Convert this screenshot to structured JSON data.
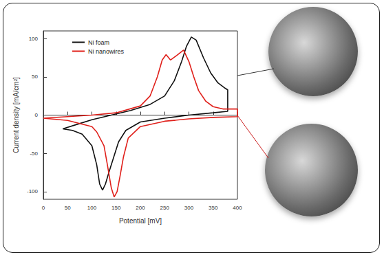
{
  "chart_data": {
    "type": "line",
    "x_label": "Potential [mV]",
    "y_label": "Current density [mA/cm²]",
    "xlim": [
      0,
      400
    ],
    "xticks": [
      0,
      50,
      100,
      150,
      200,
      250,
      300,
      350,
      400
    ],
    "ylim": [
      -110,
      110
    ],
    "yticks": [
      -100,
      -50,
      0,
      50,
      100
    ],
    "grid": false,
    "legend": "upper left",
    "series": [
      {
        "name": "Ni foam",
        "color": "#111111",
        "x": [
          40,
          70,
          100,
          140,
          180,
          220,
          250,
          270,
          285,
          295,
          305,
          315,
          330,
          345,
          360,
          375,
          380,
          380,
          350,
          300,
          250,
          200,
          170,
          155,
          145,
          135,
          128,
          122,
          116,
          110,
          100,
          80,
          60,
          40
        ],
        "values": [
          -18,
          -12,
          -6,
          0,
          6,
          14,
          25,
          45,
          70,
          90,
          102,
          98,
          75,
          55,
          42,
          35,
          33,
          5,
          3,
          0,
          -4,
          -9,
          -20,
          -35,
          -55,
          -75,
          -90,
          -98,
          -90,
          -65,
          -40,
          -25,
          -20,
          -18
        ]
      },
      {
        "name": "Ni nanowires",
        "color": "#e0201b",
        "x": [
          0,
          50,
          100,
          150,
          200,
          220,
          235,
          245,
          253,
          262,
          275,
          289,
          300,
          310,
          320,
          335,
          350,
          370,
          400,
          400,
          350,
          300,
          250,
          200,
          175,
          165,
          158,
          152,
          146,
          140,
          132,
          125,
          110,
          100,
          50,
          0
        ],
        "values": [
          -4,
          -2,
          0,
          3,
          12,
          25,
          50,
          72,
          79,
          72,
          78,
          85,
          70,
          50,
          32,
          18,
          11,
          8,
          8,
          -2,
          -3,
          -5,
          -8,
          -15,
          -30,
          -55,
          -80,
          -100,
          -107,
          -95,
          -65,
          -40,
          -22,
          -15,
          -7,
          -4
        ]
      }
    ]
  }
}
